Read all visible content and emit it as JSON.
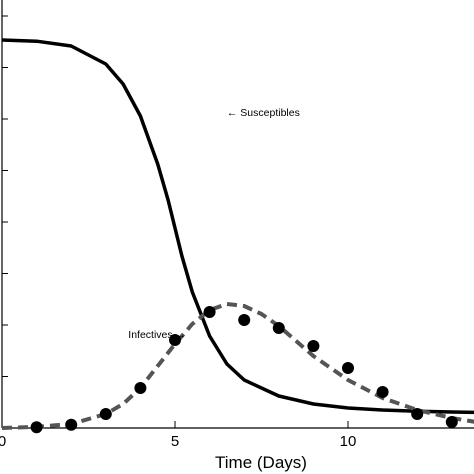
{
  "chart_data": {
    "type": "line",
    "xlabel": "Time (Days)",
    "ylabel": "",
    "xlim": [
      0,
      13.7
    ],
    "ylim": [
      0,
      1.0
    ],
    "x_ticks": [
      "0",
      "5",
      "10"
    ],
    "grid": false,
    "series": [
      {
        "style": "solid",
        "color": "#000000",
        "x": [
          0,
          1,
          2,
          3,
          3.5,
          4,
          4.5,
          4.8,
          5,
          5.2,
          5.5,
          6,
          6.5,
          7,
          8,
          9,
          10,
          11,
          12,
          13,
          13.7
        ],
        "y": [
          0.97,
          0.967,
          0.955,
          0.91,
          0.86,
          0.78,
          0.66,
          0.57,
          0.5,
          0.43,
          0.34,
          0.23,
          0.16,
          0.12,
          0.08,
          0.06,
          0.05,
          0.045,
          0.042,
          0.04,
          0.039
        ]
      },
      {
        "style": "dashed",
        "color": "#555555",
        "x": [
          0,
          1,
          2,
          3,
          3.5,
          4,
          4.5,
          5,
          5.5,
          6,
          6.5,
          7,
          7.5,
          8,
          9,
          10,
          11,
          12,
          13,
          13.7
        ],
        "y": [
          0.0,
          0.003,
          0.01,
          0.035,
          0.06,
          0.1,
          0.155,
          0.21,
          0.26,
          0.295,
          0.31,
          0.305,
          0.285,
          0.255,
          0.18,
          0.12,
          0.075,
          0.045,
          0.025,
          0.015
        ]
      },
      {
        "style": "points",
        "color": "#000000",
        "x": [
          1,
          2,
          3,
          4,
          5,
          6,
          7,
          8,
          9,
          10,
          11,
          12,
          13
        ],
        "y": [
          0.002,
          0.008,
          0.035,
          0.1,
          0.22,
          0.29,
          0.27,
          0.25,
          0.205,
          0.15,
          0.09,
          0.035,
          0.015
        ]
      }
    ],
    "annotations": [
      {
        "text": "← Susceptibles",
        "x": 6.5,
        "y": 0.78
      },
      {
        "text": "Infectives →",
        "x": 3.65,
        "y": 0.225
      }
    ]
  }
}
